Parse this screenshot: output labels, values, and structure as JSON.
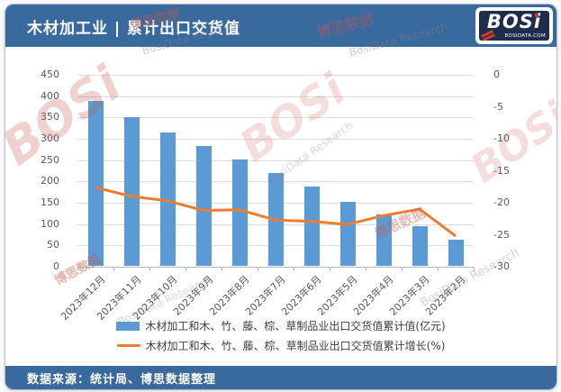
{
  "header": {
    "title": "木材加工业 | 累计出口交货值",
    "logo": {
      "brand": "BOSi",
      "site": "BOSIDATA.COM"
    }
  },
  "footer": {
    "source": "数据来源：统计局、博思数据整理"
  },
  "watermark": {
    "brand": "BOSi",
    "cn": "博思数据",
    "en": "BosiData Research"
  },
  "colors": {
    "header_blue": "#396a9e",
    "bar_blue": "#5B9BD5",
    "line_orange": "#ED7D31",
    "logo_navy": "#1f2d4d",
    "logo_red": "#d23a2e"
  },
  "chart_data": {
    "type": "bar",
    "subtype": "bar+line combo, dual axis",
    "categories": [
      "2023年12月",
      "2023年11月",
      "2023年10月",
      "2023年9月",
      "2023年8月",
      "2023年7月",
      "2023年6月",
      "2023年5月",
      "2023年4月",
      "2023年3月",
      "2023年2月"
    ],
    "series": [
      {
        "name": "木材加工和木、竹、藤、棕、草制品业出口交货值累计值(亿元)",
        "type": "bar",
        "axis": "left",
        "color": "#5B9BD5",
        "values": [
          387,
          348,
          313,
          280,
          250,
          217,
          185,
          150,
          120,
          93,
          62
        ]
      },
      {
        "name": "木材加工和木、竹、藤、棕、草制品业出口交货值累计增长(%)",
        "type": "line",
        "axis": "right",
        "color": "#ED7D31",
        "values": [
          -17.6,
          -19.0,
          -19.7,
          -21.2,
          -21.1,
          -22.7,
          -22.9,
          -23.4,
          -22.0,
          -21.0,
          -25.2
        ]
      }
    ],
    "left_axis": {
      "min": 0,
      "max": 450,
      "step": 50
    },
    "right_axis": {
      "min": -30,
      "max": 0,
      "step": 5
    },
    "grid": true,
    "legend_position": "bottom"
  }
}
